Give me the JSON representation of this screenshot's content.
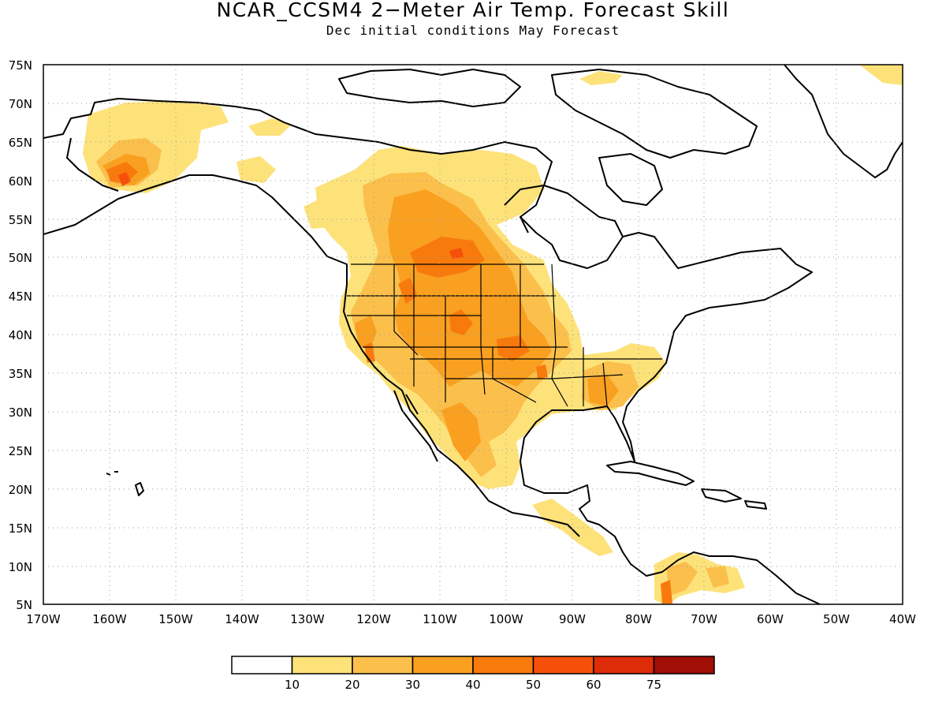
{
  "title": "NCAR_CCSM4 2−Meter Air Temp. Forecast Skill",
  "subtitle": "Dec initial conditions  May Forecast",
  "map": {
    "lon_range": [
      -170,
      -40
    ],
    "lat_range": [
      5,
      75
    ],
    "lat_labels": [
      "75N",
      "70N",
      "65N",
      "60N",
      "55N",
      "50N",
      "45N",
      "40N",
      "35N",
      "30N",
      "25N",
      "20N",
      "15N",
      "10N",
      "5N"
    ],
    "lon_labels": [
      "170W",
      "160W",
      "150W",
      "140W",
      "130W",
      "120W",
      "110W",
      "100W",
      "90W",
      "80W",
      "70W",
      "60W",
      "50W",
      "40W"
    ],
    "gridlines": "dotted"
  },
  "colorbar": {
    "labels": [
      "10",
      "20",
      "30",
      "40",
      "50",
      "60",
      "75"
    ],
    "colors": [
      "#ffffff",
      "#fde27a",
      "#fbbf4b",
      "#f9a020",
      "#f87a0d",
      "#f64f0a",
      "#de2b08",
      "#a00e06"
    ]
  }
}
